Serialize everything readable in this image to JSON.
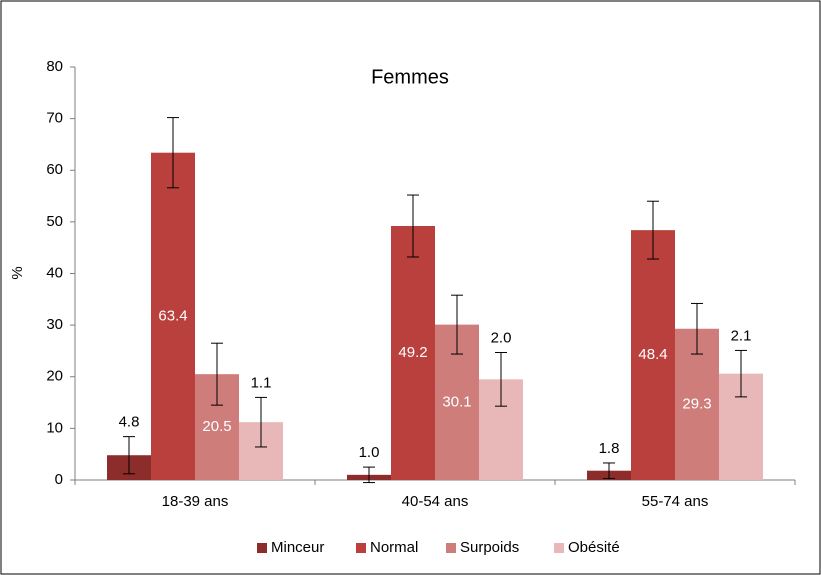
{
  "chart_data": {
    "type": "bar",
    "title": "Femmes",
    "y_label": "%",
    "categories": [
      "18-39 ans",
      "40-54 ans",
      "55-74 ans"
    ],
    "series": [
      {
        "name": "Minceur",
        "color": "#8c2d2b",
        "values": [
          4.8,
          1,
          1.8
        ],
        "errors": [
          3.6,
          1.5,
          1.5
        ],
        "value_labels": [
          "4.8",
          "1.0",
          "1.8"
        ],
        "label_position": "above"
      },
      {
        "name": "Normal",
        "color": "#b9403d",
        "values": [
          63.4,
          49.2,
          48.4
        ],
        "errors": [
          6.8,
          6,
          5.6
        ],
        "label_position": "inside"
      },
      {
        "name": "Surpoids",
        "color": "#cf7d7b",
        "values": [
          20.5,
          30.1,
          29.3
        ],
        "errors": [
          6,
          5.7,
          4.9
        ],
        "label_position": "inside"
      },
      {
        "name": "Obésité",
        "color": "#e7b8b7",
        "values": [
          11.2,
          19.5,
          20.6
        ],
        "errors": [
          4.8,
          5.2,
          4.5
        ],
        "annotations": [
          "1.1",
          "2.0",
          "2.1"
        ],
        "label_position": "above"
      }
    ],
    "ylim": [
      0,
      80
    ],
    "yticks": [
      0,
      10,
      20,
      30,
      40,
      50,
      60,
      70,
      80
    ],
    "grid": false,
    "legend": "bottom"
  }
}
